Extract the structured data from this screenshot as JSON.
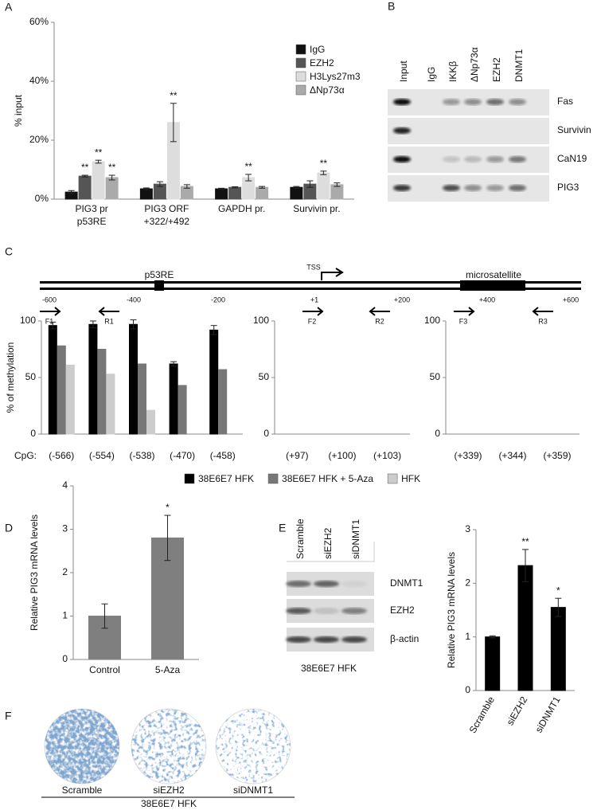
{
  "panel_labels": [
    "A",
    "B",
    "C",
    "D",
    "E",
    "F"
  ],
  "chart_data": [
    {
      "type": "bar",
      "ylabel": "% input",
      "categories": [
        "PIG3 pr\np53RE",
        "PIG3 ORF\n+322/+492",
        "GAPDH pr.",
        "Survivin pr."
      ],
      "series": [
        {
          "name": "IgG",
          "color": "#111111",
          "values": [
            2.4,
            3.5,
            3.5,
            4.0
          ],
          "errors": [
            0.5,
            0.3,
            0.2,
            0.3
          ],
          "annotations": [
            null,
            null,
            null,
            null
          ]
        },
        {
          "name": "EZH2",
          "color": "#555555",
          "values": [
            7.8,
            5.1,
            4.0,
            5.1
          ],
          "errors": [
            0.3,
            0.8,
            0.2,
            1.1
          ],
          "annotations": [
            "**",
            null,
            null,
            null
          ]
        },
        {
          "name": "H3Lys27m3",
          "color": "#dddddd",
          "values": [
            12.7,
            26.0,
            7.3,
            8.9
          ],
          "errors": [
            0.5,
            6.5,
            1.1,
            0.6
          ],
          "annotations": [
            "**",
            "**",
            "**",
            "**"
          ]
        },
        {
          "name": "ΔNp73α",
          "color": "#aaaaaa",
          "values": [
            7.3,
            4.3,
            4.0,
            4.9
          ],
          "errors": [
            0.8,
            0.6,
            0.3,
            0.6
          ],
          "annotations": [
            "**",
            null,
            null,
            null
          ]
        }
      ],
      "ylim": [
        0,
        60
      ],
      "yticks": [
        {
          "value": 0,
          "label": "0%"
        },
        {
          "value": 20,
          "label": "20%"
        },
        {
          "value": 40,
          "label": "40%"
        },
        {
          "value": 60,
          "label": "60%"
        }
      ]
    },
    {
      "type": "bar",
      "ylabel": "% of methylation",
      "xlabel": "CpG:",
      "categories": [
        "(-566)",
        "(-554)",
        "(-538)",
        "(-470)",
        "(-458)"
      ],
      "series": [
        {
          "name": "38E6E7 HFK",
          "color": "#000000",
          "values": [
            96,
            97,
            97,
            62,
            92
          ],
          "errors": [
            3,
            3,
            4,
            2,
            4
          ]
        },
        {
          "name": "38E6E7 HFK + 5-Aza",
          "color": "#777777",
          "values": [
            78,
            75,
            62,
            43,
            57
          ]
        },
        {
          "name": "HFK",
          "color": "#cccccc",
          "values": [
            61,
            53,
            21,
            null,
            null
          ]
        }
      ],
      "ylim": [
        0,
        100
      ],
      "yticks": [
        0,
        50,
        100
      ]
    },
    {
      "type": "bar",
      "categories": [
        "(+97)",
        "(+100)",
        "(+103)"
      ],
      "series": [
        {
          "color": "#000000",
          "values": [
            0,
            0,
            0
          ]
        },
        {
          "color": "#777777",
          "values": [
            0,
            0,
            0
          ]
        },
        {
          "color": "#cccccc",
          "values": [
            0,
            0,
            0
          ]
        }
      ],
      "ylim": [
        0,
        100
      ],
      "yticks": [
        0,
        50,
        100
      ]
    },
    {
      "type": "bar",
      "categories": [
        "(+339)",
        "(+344)",
        "(+359)"
      ],
      "series": [
        {
          "color": "#000000",
          "values": [
            0,
            0,
            0
          ]
        },
        {
          "color": "#777777",
          "values": [
            0,
            0,
            0
          ]
        },
        {
          "color": "#cccccc",
          "values": [
            0,
            0,
            0
          ]
        }
      ],
      "ylim": [
        0,
        100
      ],
      "yticks": [
        0,
        50,
        100
      ]
    },
    {
      "type": "bar",
      "ylabel": "Relative PIG3 mRNA levels",
      "categories": [
        "Control",
        "5-Aza"
      ],
      "values": [
        1.0,
        2.8
      ],
      "errors": [
        0.28,
        0.52
      ],
      "annotations": [
        null,
        "*"
      ],
      "color": "#7f7f7f",
      "ylim": [
        0,
        4
      ],
      "yticks": [
        0,
        1,
        2,
        3,
        4
      ]
    },
    {
      "type": "bar",
      "ylabel": "Relative PIG3 mRNA levels",
      "categories": [
        "Scramble",
        "siEZH2",
        "siDNMT1"
      ],
      "values": [
        1.0,
        2.33,
        1.55
      ],
      "errors": [
        0.02,
        0.3,
        0.17
      ],
      "annotations": [
        null,
        "**",
        "*"
      ],
      "color": "#000000",
      "ylim": [
        0,
        3
      ],
      "yticks": [
        0,
        1,
        2,
        3
      ]
    }
  ],
  "gel_B": {
    "lanes": [
      "Input",
      "IgG",
      "IKKβ",
      "ΔNp73α",
      "EZH2",
      "DNMT1"
    ],
    "rows": [
      "Fas",
      "Survivin",
      "CaN19",
      "PIG3"
    ]
  },
  "schematic_C": {
    "elements": [
      "p53RE",
      "TSS",
      "microsatellite"
    ],
    "positions": [
      "-600",
      "-400",
      "-200",
      "+1",
      "+200",
      "+400",
      "+600"
    ],
    "primers": [
      "F1",
      "R1",
      "F2",
      "R2",
      "F3",
      "R3"
    ]
  },
  "blot_E": {
    "lanes": [
      "Scramble",
      "siEZH2",
      "siDNMT1"
    ],
    "rows": [
      "DNMT1",
      "EZH2",
      "β-actin"
    ],
    "caption": "38E6E7 HFK"
  },
  "colonies_F": {
    "labels": [
      "Scramble",
      "siEZH2",
      "siDNMT1"
    ],
    "caption": "38E6E7 HFK"
  }
}
